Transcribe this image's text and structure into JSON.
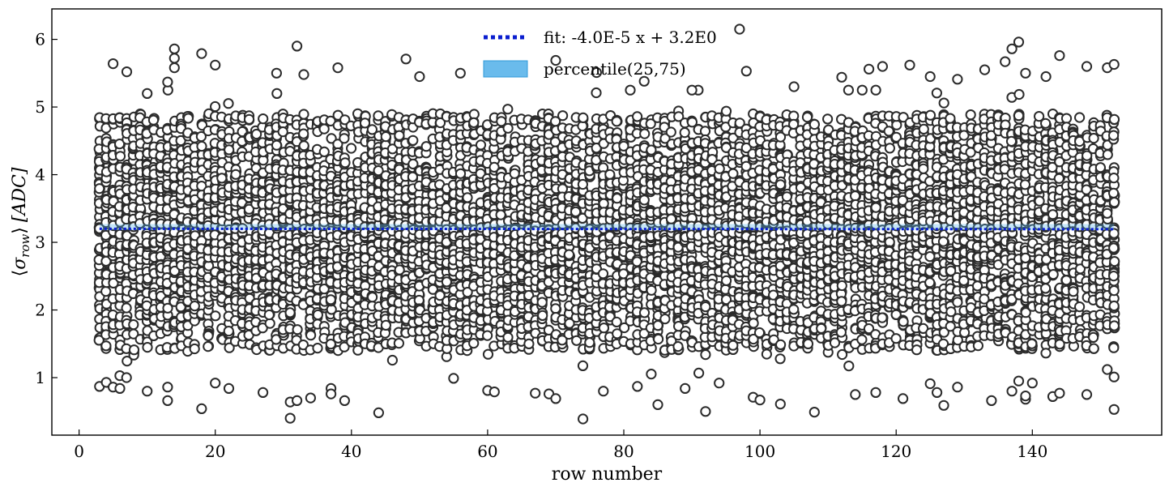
{
  "chart_data": {
    "type": "scatter",
    "xlabel": "row number",
    "ylabel": "⟨σrow⟩ [ADC]",
    "ylabel_parts": {
      "open": "⟨",
      "sigma": "σ",
      "sub": "row",
      "close": "⟩",
      "unit": "[ADC]"
    },
    "xlim": [
      -4,
      159
    ],
    "ylim": [
      0.15,
      6.45
    ],
    "xticks": [
      0,
      20,
      40,
      60,
      80,
      100,
      120,
      140
    ],
    "yticks": [
      1,
      2,
      3,
      4,
      5,
      6
    ],
    "grid": false,
    "legend_position": "top-center",
    "colors": {
      "fit": "#0a1ecf",
      "band": "#5ab4ea",
      "marker_edge": "#2b2b2b",
      "marker_face": "#ffffff"
    },
    "series": [
      {
        "name": "fit: -4.0E-5 x + 3.2E0",
        "type": "line",
        "style": "dotted",
        "slope": -4e-05,
        "intercept": 3.2
      },
      {
        "name": "percentile(25,75)",
        "type": "band",
        "x_range": [
          3,
          152
        ],
        "lower": 3.18,
        "upper": 3.27
      },
      {
        "name": "row sigma samples",
        "type": "scatter",
        "x_range": [
          3,
          152
        ],
        "bulk_range": [
          1.4,
          4.9
        ],
        "outliers": [
          [
            5,
            5.64
          ],
          [
            7,
            5.52
          ],
          [
            10,
            5.2
          ],
          [
            13,
            5.37
          ],
          [
            14,
            5.86
          ],
          [
            14,
            5.72
          ],
          [
            14,
            5.58
          ],
          [
            18,
            5.79
          ],
          [
            20,
            5.62
          ],
          [
            29,
            5.5
          ],
          [
            32,
            5.9
          ],
          [
            33,
            5.48
          ],
          [
            38,
            5.58
          ],
          [
            48,
            5.71
          ],
          [
            50,
            5.45
          ],
          [
            56,
            5.5
          ],
          [
            70,
            5.69
          ],
          [
            76,
            5.51
          ],
          [
            83,
            5.38
          ],
          [
            90,
            5.25
          ],
          [
            97,
            6.15
          ],
          [
            98,
            5.53
          ],
          [
            105,
            5.3
          ],
          [
            112,
            5.44
          ],
          [
            116,
            5.56
          ],
          [
            118,
            5.6
          ],
          [
            122,
            5.62
          ],
          [
            125,
            5.45
          ],
          [
            129,
            5.41
          ],
          [
            133,
            5.55
          ],
          [
            136,
            5.67
          ],
          [
            137,
            5.86
          ],
          [
            138,
            5.96
          ],
          [
            139,
            5.5
          ],
          [
            142,
            5.45
          ],
          [
            144,
            5.76
          ],
          [
            148,
            5.6
          ],
          [
            151,
            5.58
          ],
          [
            152,
            5.63
          ],
          [
            3,
            0.87
          ],
          [
            4,
            0.93
          ],
          [
            5,
            0.86
          ],
          [
            6,
            0.84
          ],
          [
            10,
            0.8
          ],
          [
            13,
            0.66
          ],
          [
            13,
            0.86
          ],
          [
            18,
            0.54
          ],
          [
            20,
            0.92
          ],
          [
            22,
            0.84
          ],
          [
            27,
            0.78
          ],
          [
            31,
            0.4
          ],
          [
            31,
            0.64
          ],
          [
            32,
            0.66
          ],
          [
            34,
            0.7
          ],
          [
            37,
            0.84
          ],
          [
            37,
            0.76
          ],
          [
            39,
            0.66
          ],
          [
            44,
            0.48
          ],
          [
            55,
            0.99
          ],
          [
            60,
            0.81
          ],
          [
            61,
            0.79
          ],
          [
            67,
            0.77
          ],
          [
            69,
            0.76
          ],
          [
            70,
            0.69
          ],
          [
            74,
            0.39
          ],
          [
            77,
            0.8
          ],
          [
            82,
            0.87
          ],
          [
            85,
            0.6
          ],
          [
            89,
            0.84
          ],
          [
            92,
            0.5
          ],
          [
            94,
            0.92
          ],
          [
            99,
            0.71
          ],
          [
            100,
            0.67
          ],
          [
            103,
            0.61
          ],
          [
            108,
            0.49
          ],
          [
            114,
            0.75
          ],
          [
            117,
            0.78
          ],
          [
            121,
            0.69
          ],
          [
            125,
            0.91
          ],
          [
            126,
            0.78
          ],
          [
            127,
            0.59
          ],
          [
            129,
            0.86
          ],
          [
            134,
            0.66
          ],
          [
            137,
            0.8
          ],
          [
            138,
            0.95
          ],
          [
            139,
            0.68
          ],
          [
            139,
            0.73
          ],
          [
            140,
            0.92
          ],
          [
            143,
            0.72
          ],
          [
            144,
            0.77
          ],
          [
            148,
            0.75
          ],
          [
            151,
            1.12
          ],
          [
            152,
            0.53
          ],
          [
            152,
            1.01
          ]
        ]
      }
    ]
  }
}
